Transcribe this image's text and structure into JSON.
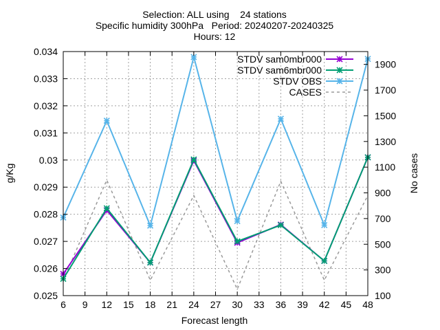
{
  "chart_data": {
    "type": "line",
    "title_lines": [
      "Selection: ALL using    24 stations",
      "Specific humidity 300hPa   Period: 20240207-20240325",
      "Hours: 12"
    ],
    "xlabel": "Forecast length",
    "ylabel": "g/Kg",
    "y2label": "No cases",
    "x": [
      6,
      12,
      18,
      24,
      30,
      36,
      42,
      48
    ],
    "xlim": [
      6,
      48
    ],
    "xticks": [
      "6",
      "9",
      "12",
      "15",
      "18",
      "21",
      "24",
      "27",
      "30",
      "33",
      "36",
      "39",
      "42",
      "45",
      "48"
    ],
    "ylim": [
      0.025,
      0.034
    ],
    "yticks": [
      "0.025",
      "0.026",
      "0.027",
      "0.028",
      "0.029",
      "0.03",
      "0.031",
      "0.032",
      "0.033",
      "0.034"
    ],
    "y2lim": [
      100,
      2000
    ],
    "y2ticks": [
      "100",
      "300",
      "500",
      "700",
      "900",
      "1100",
      "1300",
      "1500",
      "1700",
      "1900"
    ],
    "grid": true,
    "legend_position": "top-right",
    "series": [
      {
        "name": "STDV sam0mbr000",
        "axis": "y",
        "color": "#9400d3",
        "marker": "star",
        "values": [
          0.0258,
          0.02815,
          0.02622,
          0.02998,
          0.02695,
          0.02762,
          0.02628,
          0.0301
        ]
      },
      {
        "name": "STDV sam6mbr000",
        "axis": "y",
        "color": "#009e73",
        "marker": "star",
        "values": [
          0.02562,
          0.02822,
          0.02622,
          0.03002,
          0.027,
          0.0276,
          0.02628,
          0.0301
        ]
      },
      {
        "name": "STDV OBS",
        "axis": "y",
        "color": "#56b4e9",
        "marker": "star",
        "values": [
          0.02788,
          0.03145,
          0.02758,
          0.0338,
          0.02775,
          0.03152,
          0.0276,
          0.03373
        ]
      },
      {
        "name": "CASES",
        "axis": "y2",
        "color": "#999999",
        "marker": "none",
        "dashed": true,
        "values": [
          220,
          1000,
          220,
          880,
          150,
          990,
          220,
          880
        ]
      }
    ]
  }
}
